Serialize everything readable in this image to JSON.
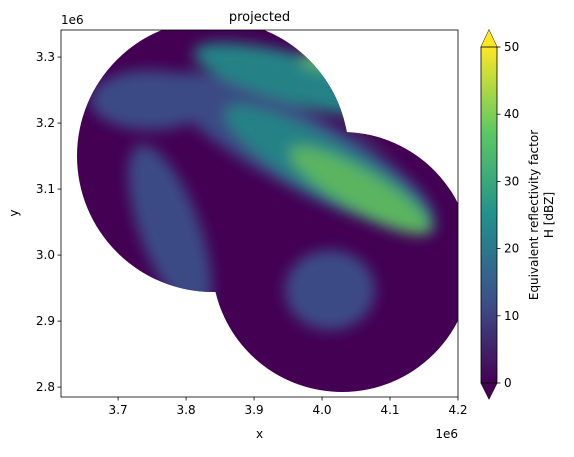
{
  "chart_data": {
    "type": "image",
    "title": "projected",
    "x_label": "x",
    "y_label": "y",
    "x_offset_text": "1e6",
    "y_offset_text": "1e6",
    "xlim": [
      3.616,
      4.2
    ],
    "ylim": [
      2.785,
      3.341
    ],
    "xticks": [
      3.7,
      3.8,
      3.9,
      {
        "value": 4.0,
        "label": "4.0"
      },
      4.1,
      4.2
    ],
    "yticks": [
      2.8,
      2.9,
      {
        "value": 3.0,
        "label": "3.0"
      },
      3.1,
      3.2,
      3.3
    ],
    "colorbar": {
      "label": [
        "Equivalent reflectivity factor",
        "H [dBZ]"
      ],
      "clim": [
        0,
        50
      ],
      "ticks": [
        0,
        10,
        20,
        30,
        40,
        50
      ],
      "colormap": "viridis"
    }
  }
}
